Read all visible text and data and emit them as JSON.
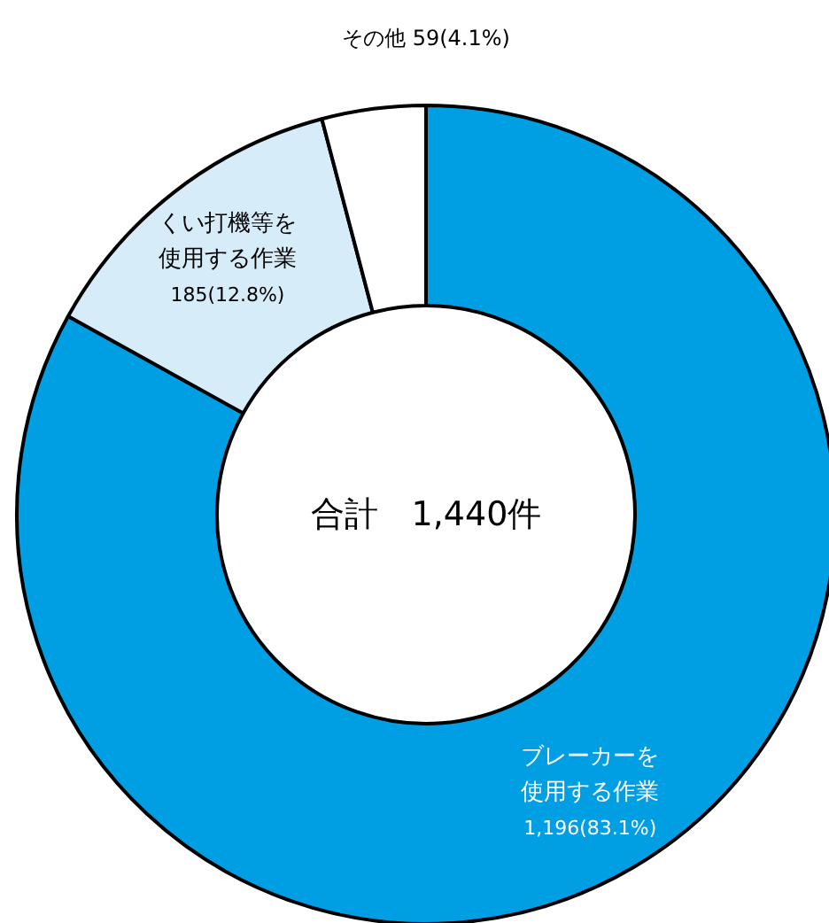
{
  "chart_data": {
    "type": "donut",
    "categories": [
      "ブレーカーを使用する作業",
      "くい打機等を使用する作業",
      "その他"
    ],
    "values": [
      1196,
      185,
      59
    ],
    "value_labels": [
      "1,196(83.1%)",
      "185(12.8%)",
      "59(4.1%)"
    ],
    "colors": [
      "#009fe3",
      "#d6ecf9",
      "#ffffff"
    ],
    "annotations": [
      "合計　1,440件"
    ]
  }
}
